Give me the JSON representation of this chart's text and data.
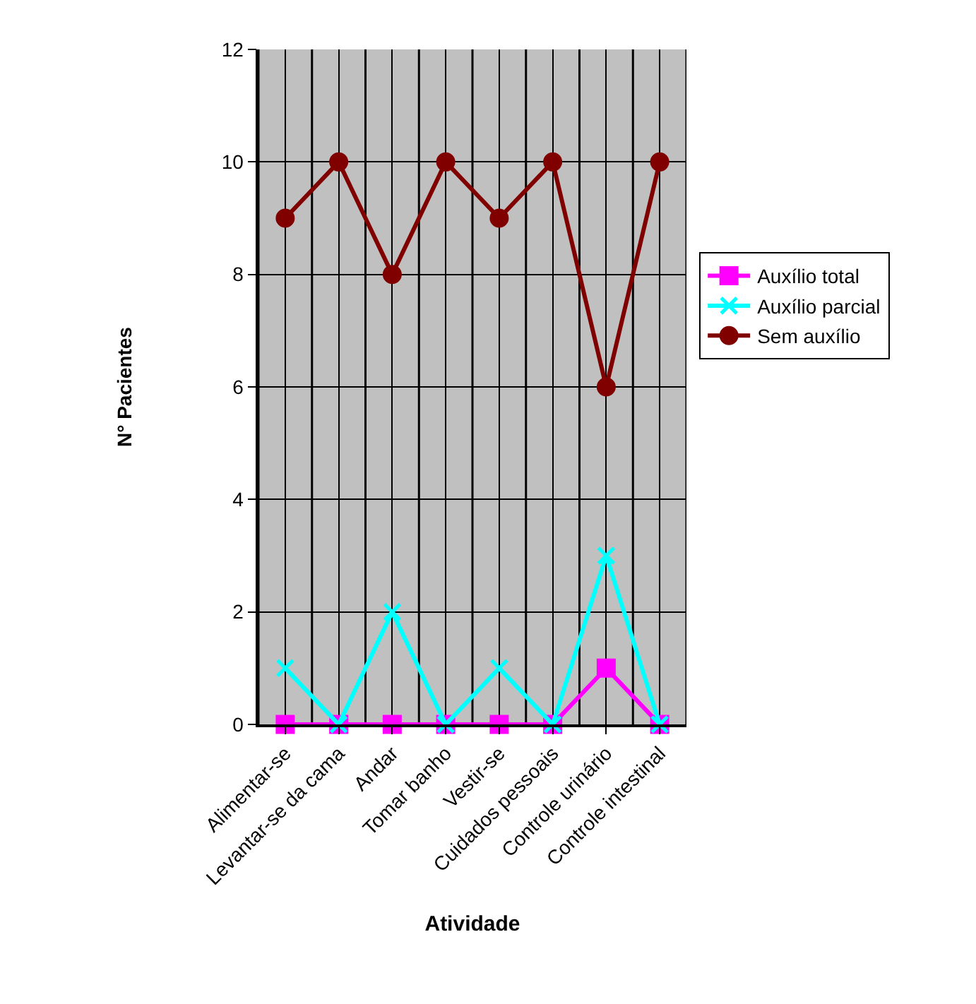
{
  "chart_data": {
    "type": "line",
    "xlabel": "Atividade",
    "ylabel": "N° Pacientes",
    "categories": [
      "Alimentar-se",
      "Levantar-se da cama",
      "Andar",
      "Tomar banho",
      "Vestir-se",
      "Cuidados pessoais",
      "Controle urinário",
      "Controle intestinal"
    ],
    "series": [
      {
        "name": "Auxílio total",
        "color": "#ff00ff",
        "marker": "square",
        "values": [
          0,
          0,
          0,
          0,
          0,
          0,
          1,
          0
        ]
      },
      {
        "name": "Auxílio parcial",
        "color": "#00ffff",
        "marker": "cross",
        "values": [
          1,
          0,
          2,
          0,
          1,
          0,
          3,
          0
        ]
      },
      {
        "name": "Sem auxílio",
        "color": "#800000",
        "marker": "circle",
        "values": [
          9,
          10,
          8,
          10,
          9,
          10,
          6,
          10
        ]
      }
    ],
    "ylim": [
      0,
      12
    ],
    "yticks": [
      0,
      2,
      4,
      6,
      8,
      10,
      12
    ],
    "grid": true,
    "legend": "right"
  }
}
